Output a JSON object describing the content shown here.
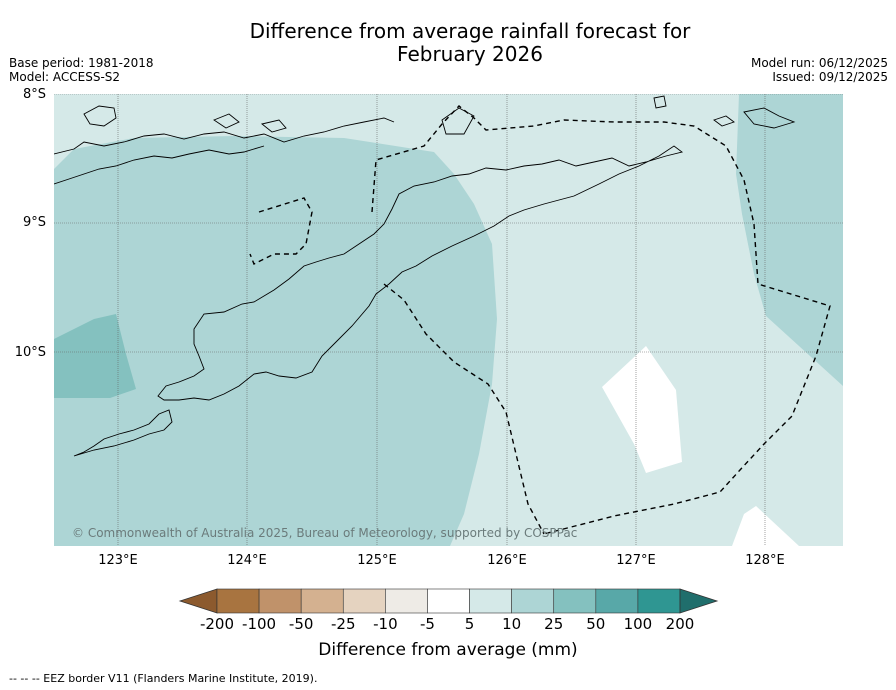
{
  "title_line1": "Difference from average rainfall forecast for",
  "title_line2": "February 2026",
  "meta_left": [
    "Base period: 1981-2018",
    "Model: ACCESS-S2"
  ],
  "meta_right": [
    "Model run: 06/12/2025",
    "Issued: 09/12/2025"
  ],
  "lat_labels": [
    "8°S",
    "9°S",
    "10°S"
  ],
  "lon_labels": [
    "123°E",
    "124°E",
    "125°E",
    "126°E",
    "127°E",
    "128°E"
  ],
  "copyright": "© Commonwealth of Australia 2025, Bureau of Meteorology, supported by COSPPac",
  "colorbar": {
    "ticks": [
      "-200",
      "-100",
      "-50",
      "-25",
      "-10",
      "-5",
      "5",
      "10",
      "25",
      "50",
      "100",
      "200"
    ],
    "colors": [
      "#a87440",
      "#c0926a",
      "#d4b190",
      "#e5d3c0",
      "#eeebe6",
      "#ffffff",
      "#d5e9e8",
      "#add5d5",
      "#84c1bf",
      "#58a8a8",
      "#2f9692"
    ],
    "under_color": "#8c5a2e",
    "over_color": "#206e6c",
    "title": "Difference from average (mm)"
  },
  "eez_note": "--  --  -- EEZ border V11 (Flanders Marine Institute, 2019).",
  "map": {
    "lon_range": [
      122.5,
      128.6
    ],
    "lat_range": [
      -11.5,
      -8.0
    ],
    "fill_light": "#d5e9e8",
    "fill_mid": "#add5d5",
    "fill_dark": "#84c1bf"
  }
}
